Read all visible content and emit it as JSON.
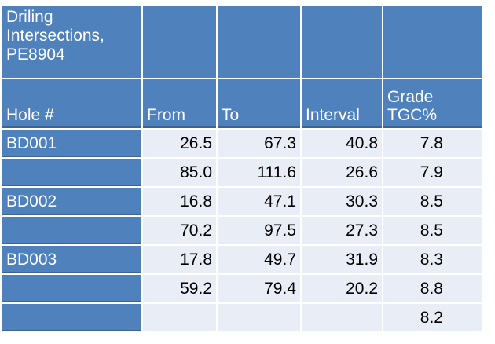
{
  "table": {
    "title": "Driling Intersections, PE8904",
    "columns": [
      "Hole #",
      "From",
      "To",
      "Interval",
      "Grade TGC%"
    ],
    "rows": [
      {
        "hole": "BD001",
        "from": "26.5",
        "to": "67.3",
        "interval": "40.8",
        "grade": "7.8"
      },
      {
        "hole": "",
        "from": "85.0",
        "to": "111.6",
        "interval": "26.6",
        "grade": "7.9"
      },
      {
        "hole": "BD002",
        "from": "16.8",
        "to": "47.1",
        "interval": "30.3",
        "grade": "8.5"
      },
      {
        "hole": "",
        "from": "70.2",
        "to": "97.5",
        "interval": "27.3",
        "grade": "8.5"
      },
      {
        "hole": "BD003",
        "from": "17.8",
        "to": "49.7",
        "interval": "31.9",
        "grade": "8.3"
      },
      {
        "hole": "",
        "from": "59.2",
        "to": "79.4",
        "interval": "20.2",
        "grade": "8.8"
      },
      {
        "hole": "",
        "from": "",
        "to": "",
        "interval": "",
        "grade": "8.2"
      }
    ],
    "colors": {
      "header_blue": "#4f81bd",
      "header_blue_edge": "#3a6496",
      "data_cell": "#e9edf5",
      "gridline": "#ffffff",
      "data_text": "#000000",
      "header_text": "#ffffff"
    }
  }
}
